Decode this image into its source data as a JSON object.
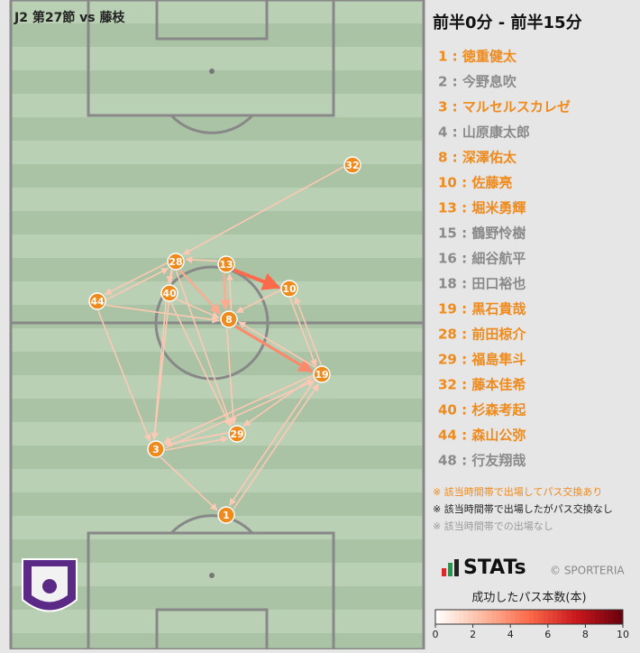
{
  "header": {
    "match": "J2 第27節 vs 藤枝",
    "period": "前半0分 - 前半15分"
  },
  "players": [
    {
      "label": "1 : 徳重健太",
      "color": "#ef8a1d"
    },
    {
      "label": "2 : 今野息吹",
      "color": "#8a8a8a"
    },
    {
      "label": "3 : マルセルスカレゼ",
      "color": "#ef8a1d"
    },
    {
      "label": "4 : 山原康太郎",
      "color": "#8a8a8a"
    },
    {
      "label": "8 : 深澤佑太",
      "color": "#ef8a1d"
    },
    {
      "label": "10 : 佐藤亮",
      "color": "#ef8a1d"
    },
    {
      "label": "13 : 堀米勇輝",
      "color": "#ef8a1d"
    },
    {
      "label": "15 : 鶴野怜樹",
      "color": "#8a8a8a"
    },
    {
      "label": "16 : 細谷航平",
      "color": "#8a8a8a"
    },
    {
      "label": "18 : 田口裕也",
      "color": "#8a8a8a"
    },
    {
      "label": "19 : 黒石貴哉",
      "color": "#ef8a1d"
    },
    {
      "label": "28 : 前田椋介",
      "color": "#ef8a1d"
    },
    {
      "label": "29 : 福島隼斗",
      "color": "#ef8a1d"
    },
    {
      "label": "32 : 藤本佳希",
      "color": "#ef8a1d"
    },
    {
      "label": "40 : 杉森考起",
      "color": "#ef8a1d"
    },
    {
      "label": "44 : 森山公弥",
      "color": "#ef8a1d"
    },
    {
      "label": "48 : 行友翔哉",
      "color": "#8a8a8a"
    }
  ],
  "notes": [
    {
      "text": "※ 該当時間帯で出場してパス交換あり",
      "color": "#ef8a1d"
    },
    {
      "text": "※ 該当時間帯で出場したがパス交換なし",
      "color": "#222222"
    },
    {
      "text": "※ 該当時間帯での出場なし",
      "color": "#9a9a9a"
    }
  ],
  "brand": {
    "name": "STATs",
    "credit": "© SPORTERIA"
  },
  "colorbar": {
    "title": "成功したパス本数(本)",
    "lim": [
      0,
      10
    ],
    "ticks": [
      0,
      2,
      4,
      6,
      8,
      10
    ]
  },
  "nodes": [
    {
      "label": "32"
    },
    {
      "label": "28"
    },
    {
      "label": "13"
    },
    {
      "label": "10"
    },
    {
      "label": "44"
    },
    {
      "label": "40"
    },
    {
      "label": "8"
    },
    {
      "label": "19"
    },
    {
      "label": "3"
    },
    {
      "label": "29"
    },
    {
      "label": "1"
    }
  ],
  "edges": [
    {
      "from": 0,
      "to": 1,
      "count": 1
    },
    {
      "from": 1,
      "to": 4,
      "count": 1
    },
    {
      "from": 4,
      "to": 1,
      "count": 1
    },
    {
      "from": 1,
      "to": 6,
      "count": 2
    },
    {
      "from": 1,
      "to": 5,
      "count": 1
    },
    {
      "from": 2,
      "to": 1,
      "count": 1
    },
    {
      "from": 2,
      "to": 3,
      "count": 4
    },
    {
      "from": 3,
      "to": 6,
      "count": 1
    },
    {
      "from": 6,
      "to": 7,
      "count": 3
    },
    {
      "from": 7,
      "to": 6,
      "count": 1
    },
    {
      "from": 7,
      "to": 3,
      "count": 1
    },
    {
      "from": 3,
      "to": 7,
      "count": 1
    },
    {
      "from": 4,
      "to": 6,
      "count": 1
    },
    {
      "from": 5,
      "to": 6,
      "count": 1
    },
    {
      "from": 5,
      "to": 8,
      "count": 1
    },
    {
      "from": 1,
      "to": 8,
      "count": 1
    },
    {
      "from": 8,
      "to": 7,
      "count": 1
    },
    {
      "from": 7,
      "to": 8,
      "count": 1
    },
    {
      "from": 8,
      "to": 9,
      "count": 1
    },
    {
      "from": 9,
      "to": 8,
      "count": 1
    },
    {
      "from": 8,
      "to": 10,
      "count": 1
    },
    {
      "from": 10,
      "to": 7,
      "count": 1
    },
    {
      "from": 7,
      "to": 10,
      "count": 1
    },
    {
      "from": 6,
      "to": 9,
      "count": 1
    },
    {
      "from": 2,
      "to": 6,
      "count": 2
    },
    {
      "from": 4,
      "to": 8,
      "count": 1
    },
    {
      "from": 5,
      "to": 9,
      "count": 1
    },
    {
      "from": 6,
      "to": 2,
      "count": 1
    },
    {
      "from": 7,
      "to": 9,
      "count": 1
    },
    {
      "from": 1,
      "to": 9,
      "count": 1
    }
  ]
}
